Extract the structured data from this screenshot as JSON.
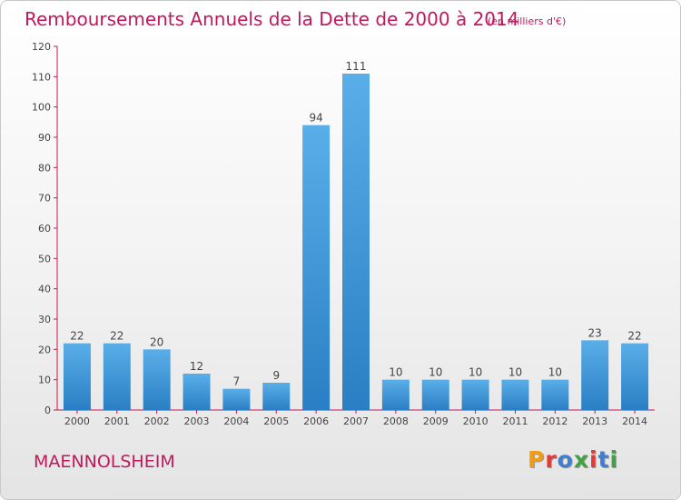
{
  "header": {
    "title": "Remboursements Annuels de la Dette de 2000 à 2014",
    "unit": "(en milliers d'€)"
  },
  "footer": {
    "commune": "MAENNOLSHEIM",
    "brand": "Proxiti",
    "brand_colors": [
      "#f39c12",
      "#e53935",
      "#3f7fd1",
      "#43a047",
      "#e53935",
      "#3f7fd1",
      "#43a047"
    ]
  },
  "chart_data": {
    "type": "bar",
    "categories": [
      "2000",
      "2001",
      "2002",
      "2003",
      "2004",
      "2005",
      "2006",
      "2007",
      "2008",
      "2009",
      "2010",
      "2011",
      "2012",
      "2013",
      "2014"
    ],
    "values": [
      22,
      22,
      20,
      12,
      7,
      9,
      94,
      111,
      10,
      10,
      10,
      10,
      10,
      23,
      22
    ],
    "ylim": [
      0,
      120
    ],
    "yticks": [
      0,
      10,
      20,
      30,
      40,
      50,
      60,
      70,
      80,
      90,
      100,
      110,
      120
    ],
    "grid": false,
    "bar_color_top": "#5aaee8",
    "bar_color_bottom": "#2a7fc4",
    "axis_color": "#c2185b",
    "label_color": "#444444"
  }
}
